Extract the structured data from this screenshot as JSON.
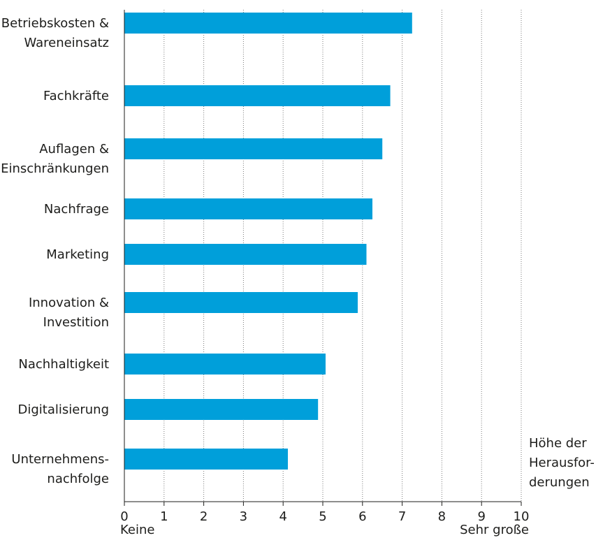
{
  "chart_data": {
    "type": "bar",
    "orientation": "horizontal",
    "categories": [
      [
        "Betriebskosten &",
        "Wareneinsatz"
      ],
      [
        "Fachkräfte"
      ],
      [
        "Auflagen &",
        "Einschränkungen"
      ],
      [
        "Nachfrage"
      ],
      [
        "Marketing"
      ],
      [
        "Innovation &",
        "Investition"
      ],
      [
        "Nachhaltigkeit"
      ],
      [
        "Digitalisierung"
      ],
      [
        "Unternehmens-",
        "nachfolge"
      ]
    ],
    "values": [
      7.25,
      6.7,
      6.5,
      6.25,
      6.1,
      5.88,
      5.07,
      4.88,
      4.12
    ],
    "xlim": [
      0,
      10
    ],
    "xticks": [
      "0",
      "1",
      "2",
      "3",
      "4",
      "5",
      "6",
      "7",
      "8",
      "9",
      "10"
    ],
    "x_min_label": "Keine",
    "x_max_label": "Sehr große",
    "axis_title": [
      "Höhe der",
      "Herausfor-",
      "derungen"
    ],
    "bar_color": "#009fda",
    "grid": "vertical-dotted",
    "legend": "none"
  }
}
